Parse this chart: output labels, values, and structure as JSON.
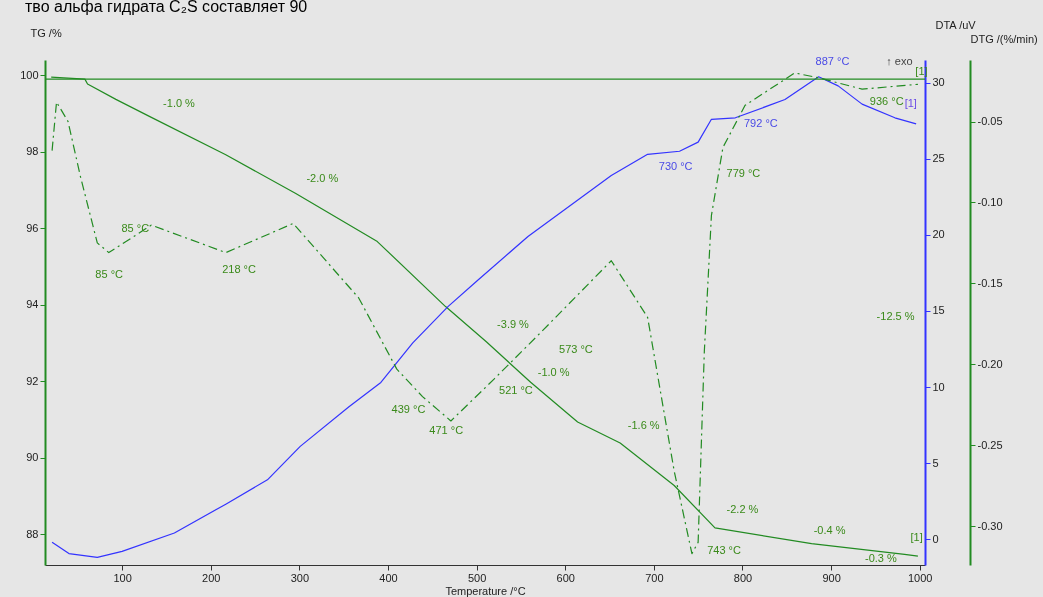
{
  "chart_data": {
    "type": "line",
    "title": "тво альфа гидрата C₂S составляет 90",
    "xlabel": "Temperature /°C",
    "ylabel": "TG /%",
    "y2label": "DTA /uV",
    "y3label": "DTG /(%/min)",
    "xlim": [
      13,
      1006
    ],
    "xticks": [
      100,
      200,
      300,
      400,
      500,
      600,
      700,
      800,
      900,
      1000
    ],
    "ylim": [
      87.19,
      100.4
    ],
    "yticks": [
      88,
      90,
      92,
      94,
      96,
      98,
      100
    ],
    "y2lim": [
      -1.7,
      31.5
    ],
    "y2ticks": [
      0,
      5,
      10,
      15,
      20,
      25,
      30
    ],
    "y3lim": [
      -0.324,
      -0.012
    ],
    "y3ticks": [
      {
        "value": -0.3,
        "label": "-0.30"
      },
      {
        "value": -0.25,
        "label": "-0.25"
      },
      {
        "value": -0.2,
        "label": "-0.20"
      },
      {
        "value": -0.15,
        "label": "-0.15"
      },
      {
        "value": -0.1,
        "label": "-0.10"
      },
      {
        "value": -0.05,
        "label": "-0.05"
      }
    ],
    "grid": false,
    "series": [
      {
        "type": "line",
        "axis": "y",
        "color": "#228b22",
        "line_style": "solid",
        "x": [
          20,
          58,
          61,
          93,
          133,
          217,
          296,
          388,
          465,
          511,
          561,
          614,
          662,
          723,
          769,
          878,
          983,
          998
        ],
        "values": [
          99.95,
          99.9,
          99.77,
          99.37,
          98.9,
          97.92,
          96.91,
          95.65,
          93.95,
          93.03,
          91.97,
          90.93,
          90.38,
          89.27,
          88.16,
          87.75,
          87.47,
          87.42
        ]
      },
      {
        "type": "line",
        "axis": "y2",
        "color": "#3333ff",
        "line_style": "solid",
        "x": [
          21,
          40,
          72,
          100,
          159,
          217,
          264,
          301,
          356,
          392,
          428,
          468,
          501,
          558,
          652,
          693,
          729,
          750,
          765,
          792,
          848,
          886,
          908,
          935,
          972,
          996
        ],
        "values": [
          -0.2,
          -0.95,
          -1.2,
          -0.8,
          0.4,
          2.3,
          3.9,
          6.1,
          8.7,
          10.3,
          12.9,
          15.3,
          17.0,
          19.9,
          23.9,
          25.3,
          25.5,
          26.1,
          27.6,
          27.7,
          28.9,
          30.4,
          29.8,
          28.6,
          27.7,
          27.3
        ]
      },
      {
        "type": "line",
        "axis": "y3",
        "color": "#228b22",
        "line_style": "dashed",
        "x": [
          21,
          26,
          39,
          53,
          72,
          85,
          133,
          217,
          293,
          367,
          410,
          439,
          471,
          520,
          573,
          652,
          693,
          723,
          743,
          750,
          757,
          765,
          778,
          803,
          859,
          886,
          935,
          998
        ],
        "values": [
          -0.068,
          -0.038,
          -0.05,
          -0.084,
          -0.125,
          -0.131,
          -0.114,
          -0.131,
          -0.113,
          -0.159,
          -0.203,
          -0.22,
          -0.235,
          -0.209,
          -0.18,
          -0.136,
          -0.171,
          -0.266,
          -0.317,
          -0.31,
          -0.192,
          -0.108,
          -0.066,
          -0.04,
          -0.02,
          -0.023,
          -0.03,
          -0.027
        ]
      }
    ],
    "ref_lines": [
      {
        "axis": "y",
        "value": 99.9,
        "color": "#228b22"
      }
    ],
    "annotations": [
      "-1.0 %",
      "-2.0 %",
      "-3.9 %",
      "573 °C",
      "-1.0 %",
      "521 °C",
      "-1.6 %",
      "-2.2 %",
      "-0.4 %",
      "-0.3 %",
      "743 °C",
      "-12.5 %",
      "85 °C",
      "85 °C",
      "218 °C",
      "439 °C",
      "471 °C",
      "730 °C",
      "779 °C",
      "792 °C",
      "887 °C",
      "936 °C",
      "↑ exo",
      "[1]",
      "[1]",
      "[1]"
    ]
  }
}
